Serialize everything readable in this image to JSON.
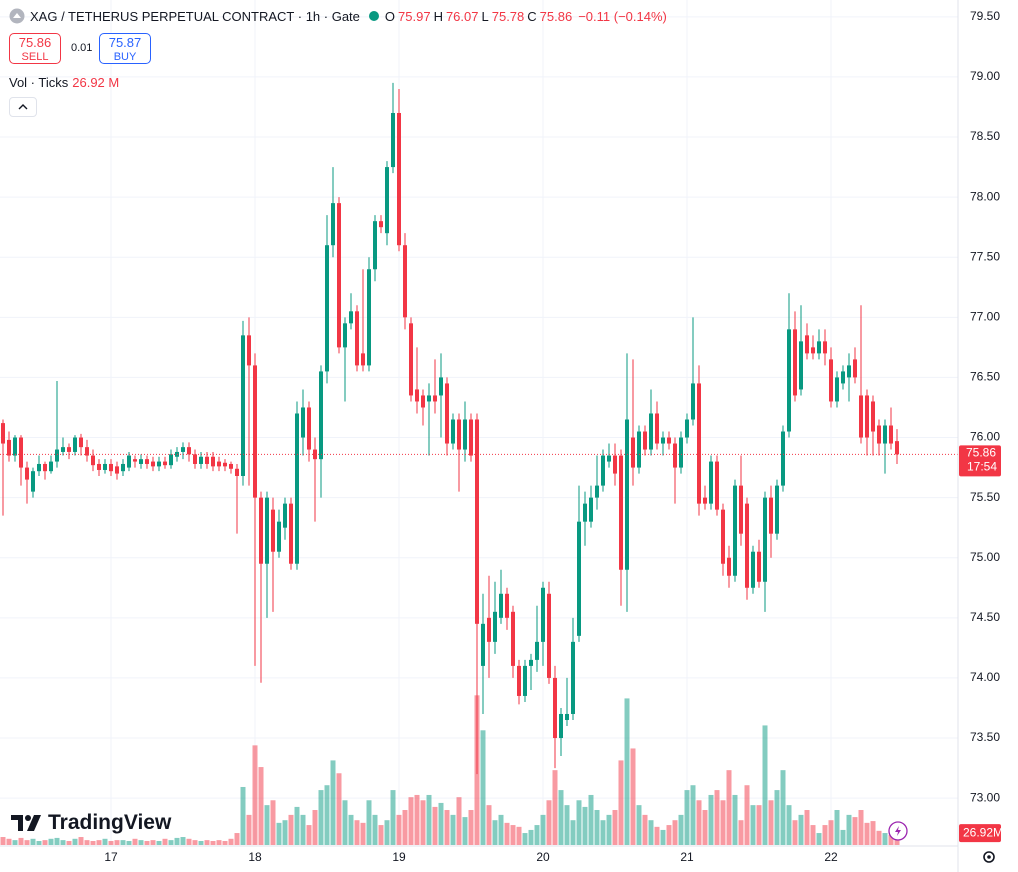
{
  "chart_data": {
    "type": "candlestick",
    "symbol_title": "XAG / TETHERUS PERPETUAL CONTRACT · 1h · Gate",
    "ohlc": [
      {
        "label": "O",
        "value": "75.97"
      },
      {
        "label": "H",
        "value": "76.07"
      },
      {
        "label": "L",
        "value": "75.78"
      },
      {
        "label": "C",
        "value": "75.86"
      }
    ],
    "change": "−0.11 (−0.14%)",
    "sell_price": "75.86",
    "sell_label": "SELL",
    "spread": "0.01",
    "buy_price": "75.87",
    "buy_label": "BUY",
    "volume_title": "Vol · Ticks",
    "volume_value": "26.92 M",
    "last_price": "75.86",
    "countdown": "17:54",
    "volume_axis_value": "26.92M",
    "logo": "TradingView",
    "up_color": "#089981",
    "down_color": "#f23645",
    "ylim": [
      72.61,
      79.64
    ],
    "yticks": [
      {
        "value": 73,
        "label": "73.00"
      },
      {
        "value": 73.5,
        "label": "73.50"
      },
      {
        "value": 74,
        "label": "74.00"
      },
      {
        "value": 74.5,
        "label": "74.50"
      },
      {
        "value": 75,
        "label": "75.00"
      },
      {
        "value": 75.5,
        "label": "75.50"
      },
      {
        "value": 76,
        "label": "76.00"
      },
      {
        "value": 76.5,
        "label": "76.50"
      },
      {
        "value": 77,
        "label": "77.00"
      },
      {
        "value": 77.5,
        "label": "77.50"
      },
      {
        "value": 78,
        "label": "78.00"
      },
      {
        "value": 78.5,
        "label": "78.50"
      },
      {
        "value": 79,
        "label": "79.00"
      },
      {
        "value": 79.5,
        "label": "79.50"
      }
    ],
    "xticks": [
      {
        "value": 18,
        "label": "17"
      },
      {
        "value": 42,
        "label": "18"
      },
      {
        "value": 66,
        "label": "19"
      },
      {
        "value": 90,
        "label": "20"
      },
      {
        "value": 114,
        "label": "21"
      },
      {
        "value": 138,
        "label": "22"
      }
    ],
    "vol_lim": [
      0,
      350
    ],
    "grid": true,
    "open": [
      76.12,
      75.98,
      75.85,
      76.0,
      75.75,
      75.55,
      75.72,
      75.78,
      75.72,
      75.8,
      75.88,
      75.92,
      75.88,
      76.0,
      75.92,
      75.85,
      75.78,
      75.73,
      75.78,
      75.76,
      75.72,
      75.75,
      75.82,
      75.78,
      75.82,
      75.8,
      75.76,
      75.8,
      75.77,
      75.84,
      75.88,
      75.92,
      75.86,
      75.78,
      75.84,
      75.84,
      75.8,
      75.79,
      75.78,
      75.74,
      75.68,
      76.85,
      76.6,
      75.5,
      74.95,
      75.4,
      75.05,
      75.25,
      75.45,
      74.95,
      76.0,
      76.25,
      75.9,
      75.82,
      76.55,
      77.6,
      77.95,
      76.75,
      76.95,
      77.05,
      76.7,
      76.6,
      77.4,
      77.8,
      77.7,
      78.25,
      78.7,
      77.6,
      76.95,
      76.4,
      76.35,
      76.3,
      76.35,
      76.35,
      76.45,
      75.95,
      76.15,
      75.9,
      76.15,
      76.15,
      74.1,
      74.5,
      74.3,
      74.5,
      74.7,
      74.55,
      74.1,
      73.85,
      74.1,
      74.15,
      74.3,
      74.7,
      74.0,
      73.5,
      73.65,
      73.7,
      74.35,
      75.3,
      75.3,
      75.5,
      75.6,
      75.8,
      75.85,
      75.85,
      74.9,
      76.0,
      75.75,
      76.05,
      75.9,
      76.2,
      75.95,
      76.0,
      75.95,
      75.75,
      76.0,
      76.15,
      76.45,
      75.5,
      75.45,
      75.8,
      75.4,
      75.0,
      74.85,
      75.6,
      75.45,
      74.75,
      75.05,
      74.8,
      75.5,
      75.2,
      75.6,
      76.05,
      76.9,
      76.4,
      76.85,
      76.75,
      76.7,
      76.8,
      76.65,
      76.3,
      76.45,
      76.5,
      76.65,
      76.35,
      76.35,
      76.3,
      76.1,
      75.95,
      76.1,
      75.97
    ],
    "high": [
      76.15,
      76.05,
      76.02,
      76.02,
      75.8,
      75.75,
      75.85,
      75.8,
      75.85,
      76.47,
      76.0,
      75.95,
      76.02,
      76.03,
      75.98,
      75.9,
      75.82,
      75.82,
      75.82,
      75.8,
      75.82,
      75.88,
      75.85,
      75.86,
      75.85,
      75.84,
      75.84,
      75.84,
      75.9,
      75.92,
      75.96,
      75.96,
      75.9,
      75.88,
      75.88,
      75.88,
      75.84,
      75.82,
      75.8,
      75.78,
      76.97,
      77.0,
      76.7,
      75.55,
      75.55,
      75.5,
      75.4,
      75.5,
      75.5,
      76.3,
      76.4,
      76.3,
      76.0,
      76.6,
      77.85,
      78.25,
      78.0,
      77.0,
      77.2,
      77.1,
      77.4,
      77.5,
      77.85,
      77.85,
      78.3,
      78.95,
      78.9,
      77.7,
      77.0,
      76.75,
      76.4,
      76.45,
      76.65,
      76.7,
      76.5,
      76.2,
      76.2,
      76.3,
      76.2,
      76.2,
      74.7,
      74.85,
      74.8,
      74.9,
      74.75,
      74.6,
      74.15,
      74.15,
      74.2,
      74.6,
      74.8,
      74.8,
      74.1,
      73.75,
      74.0,
      74.5,
      75.6,
      75.55,
      75.6,
      75.85,
      75.9,
      75.95,
      75.95,
      75.9,
      76.7,
      76.65,
      76.1,
      76.1,
      76.4,
      76.3,
      76.05,
      76.05,
      76.0,
      76.05,
      76.2,
      77.0,
      76.6,
      75.6,
      75.85,
      75.85,
      75.45,
      75.1,
      75.65,
      75.85,
      75.5,
      75.1,
      75.15,
      75.55,
      75.6,
      75.65,
      76.1,
      77.2,
      77.05,
      77.1,
      76.95,
      76.85,
      76.9,
      76.9,
      76.75,
      76.55,
      76.6,
      76.7,
      76.75,
      77.1,
      76.4,
      76.35,
      76.15,
      76.15,
      76.25,
      76.07
    ],
    "low": [
      75.35,
      75.8,
      75.8,
      75.6,
      75.45,
      75.5,
      75.68,
      75.65,
      75.7,
      75.75,
      75.85,
      75.82,
      75.85,
      75.85,
      75.8,
      75.72,
      75.68,
      75.7,
      75.68,
      75.65,
      75.68,
      75.72,
      75.75,
      75.74,
      75.74,
      75.72,
      75.72,
      75.74,
      75.74,
      75.8,
      75.82,
      75.8,
      75.74,
      75.74,
      75.74,
      75.72,
      75.72,
      75.72,
      75.7,
      75.2,
      75.6,
      75.6,
      74.1,
      73.96,
      74.5,
      74.55,
      75.0,
      75.15,
      74.9,
      74.9,
      75.85,
      75.8,
      75.3,
      75.5,
      76.45,
      77.5,
      76.7,
      76.3,
      76.9,
      76.55,
      76.55,
      76.55,
      77.3,
      77.7,
      77.6,
      78.2,
      77.55,
      76.9,
      76.3,
      76.2,
      76.1,
      75.85,
      76.2,
      76.0,
      75.85,
      75.9,
      75.55,
      75.8,
      75.8,
      73.2,
      73.7,
      74.0,
      74.2,
      74.45,
      74.4,
      74.0,
      73.78,
      73.8,
      73.9,
      74.05,
      74.1,
      73.95,
      73.25,
      73.35,
      73.6,
      73.65,
      74.3,
      75.1,
      75.25,
      75.4,
      75.55,
      75.75,
      75.6,
      74.6,
      74.55,
      75.6,
      75.7,
      75.85,
      75.85,
      75.9,
      75.85,
      75.9,
      75.45,
      75.7,
      75.95,
      76.1,
      75.35,
      75.4,
      75.4,
      75.35,
      74.85,
      74.75,
      74.8,
      75.1,
      74.65,
      74.7,
      74.75,
      74.55,
      75.0,
      75.15,
      75.55,
      76.0,
      76.3,
      76.35,
      76.65,
      76.65,
      76.65,
      76.6,
      76.25,
      76.25,
      76.4,
      76.3,
      76.45,
      75.95,
      75.85,
      75.85,
      75.85,
      75.7,
      75.9,
      75.78
    ],
    "close": [
      75.95,
      75.85,
      76.0,
      75.75,
      75.65,
      75.72,
      75.78,
      75.72,
      75.8,
      75.9,
      75.92,
      75.88,
      76.0,
      75.92,
      75.85,
      75.77,
      75.73,
      75.78,
      75.72,
      75.7,
      75.78,
      75.85,
      75.8,
      75.82,
      75.78,
      75.76,
      75.8,
      75.77,
      75.86,
      75.88,
      75.92,
      75.86,
      75.78,
      75.84,
      75.78,
      75.76,
      75.76,
      75.76,
      75.74,
      75.68,
      76.85,
      76.6,
      75.5,
      74.95,
      75.5,
      75.05,
      75.3,
      75.45,
      74.95,
      76.2,
      76.25,
      75.9,
      75.82,
      76.55,
      77.6,
      77.95,
      76.75,
      76.95,
      77.05,
      76.6,
      76.6,
      77.4,
      77.8,
      77.75,
      78.25,
      78.7,
      77.6,
      77.0,
      76.35,
      76.3,
      76.25,
      76.35,
      76.3,
      76.5,
      75.95,
      76.15,
      75.9,
      76.15,
      75.85,
      74.45,
      74.45,
      74.3,
      74.55,
      74.7,
      74.5,
      74.1,
      73.85,
      74.1,
      74.15,
      74.3,
      74.75,
      74.0,
      73.5,
      73.7,
      73.7,
      74.3,
      75.3,
      75.45,
      75.5,
      75.6,
      75.85,
      75.85,
      75.7,
      74.9,
      76.15,
      75.75,
      76.05,
      75.9,
      76.2,
      75.95,
      76.0,
      75.95,
      75.75,
      76.0,
      76.15,
      76.45,
      75.45,
      75.45,
      75.8,
      75.4,
      74.95,
      74.85,
      75.6,
      75.2,
      74.75,
      75.05,
      74.8,
      75.5,
      75.2,
      75.6,
      76.05,
      76.9,
      76.35,
      76.8,
      76.7,
      76.7,
      76.8,
      76.7,
      76.3,
      76.5,
      76.55,
      76.6,
      76.5,
      76.0,
      76.0,
      76.05,
      75.95,
      76.1,
      75.95,
      75.86
    ],
    "volume": [
      18,
      14,
      11,
      16,
      11,
      14,
      9,
      11,
      14,
      16,
      11,
      9,
      14,
      18,
      11,
      9,
      11,
      14,
      9,
      11,
      11,
      9,
      14,
      11,
      9,
      11,
      9,
      14,
      11,
      16,
      18,
      14,
      11,
      9,
      11,
      9,
      11,
      9,
      14,
      27,
      131,
      68,
      225,
      176,
      90,
      101,
      50,
      56,
      68,
      86,
      68,
      45,
      79,
      124,
      135,
      191,
      162,
      101,
      68,
      56,
      50,
      101,
      68,
      45,
      56,
      124,
      68,
      79,
      108,
      113,
      101,
      113,
      86,
      95,
      79,
      68,
      108,
      63,
      79,
      338,
      259,
      90,
      56,
      68,
      50,
      45,
      41,
      27,
      34,
      45,
      68,
      101,
      169,
      124,
      90,
      56,
      101,
      86,
      113,
      79,
      56,
      68,
      79,
      191,
      331,
      218,
      90,
      68,
      56,
      41,
      34,
      45,
      56,
      68,
      124,
      135,
      101,
      79,
      113,
      124,
      101,
      169,
      113,
      56,
      135,
      90,
      90,
      270,
      101,
      124,
      169,
      90,
      56,
      68,
      79,
      45,
      27,
      45,
      56,
      79,
      34,
      68,
      63,
      79,
      50,
      54,
      32,
      27,
      23,
      26.92
    ]
  }
}
